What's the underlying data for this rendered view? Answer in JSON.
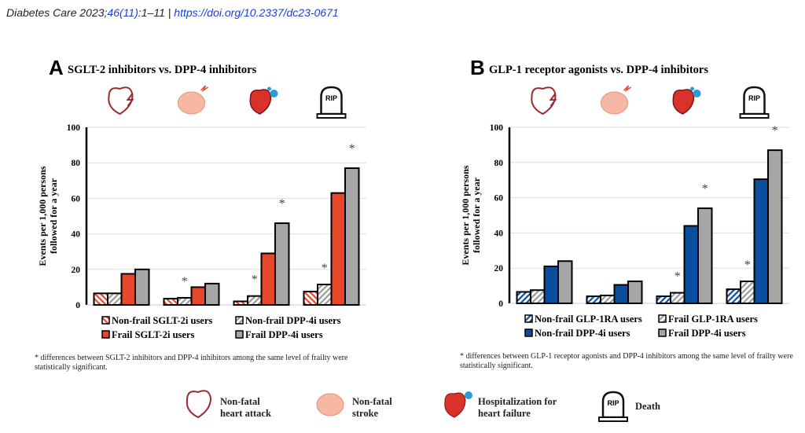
{
  "citation": {
    "journal": "Diabetes Care 2023;",
    "volume": "46(11)",
    "pages": ":1–11 | ",
    "doi": "https://doi.org/10.2337/dc23-0671"
  },
  "colors": {
    "red": "#e8482a",
    "blue": "#0a4f9e",
    "gray": "#a6a6a6"
  },
  "chart_data": [
    {
      "type": "bar",
      "panel": "A",
      "title": "SGLT-2 inhibitors vs. DPP-4 inhibitors",
      "ylabel": [
        "Events per 1,000 persons",
        "followed for a year"
      ],
      "ylim": [
        0,
        100
      ],
      "yticks": [
        "0",
        "20",
        "40",
        "60",
        "80",
        "100"
      ],
      "categories": [
        "Non-fatal heart attack",
        "Non-fatal stroke",
        "Hospitalization for heart failure",
        "Death"
      ],
      "series": [
        {
          "name": "Non-frail SGLT-2i users",
          "style": "hatch-red",
          "values": [
            6.5,
            3.5,
            2,
            7.5
          ]
        },
        {
          "name": "Non-frail DPP-4i users",
          "style": "hatch-gray",
          "values": [
            6.5,
            4,
            5,
            11.5
          ]
        },
        {
          "name": "Frail SGLT-2i users",
          "style": "solid-red",
          "values": [
            17.5,
            10,
            29,
            63
          ]
        },
        {
          "name": "Frail DPP-4i users",
          "style": "solid-gray",
          "values": [
            20,
            12,
            46,
            77
          ]
        }
      ],
      "significance": [
        [
          false,
          false
        ],
        [
          true,
          false
        ],
        [
          true,
          true
        ],
        [
          true,
          true
        ]
      ],
      "legend_order": [
        0,
        1,
        2,
        3
      ],
      "footnote": "* differences between SGLT-2 inhibitors and DPP-4 inhibitors among the same level of frailty were statistically significant."
    },
    {
      "type": "bar",
      "panel": "B",
      "title": "GLP-1 receptor agonists vs. DPP-4 inhibitors",
      "ylabel": [
        "Events per 1,000 persons",
        "followed for a year"
      ],
      "ylim": [
        0,
        100
      ],
      "yticks": [
        "0",
        "20",
        "40",
        "60",
        "80",
        "100"
      ],
      "categories": [
        "Non-fatal heart attack",
        "Non-fatal stroke",
        "Hospitalization for heart failure",
        "Death"
      ],
      "series": [
        {
          "name": "Non-frail GLP-1RA users",
          "style": "hatch-blue",
          "values": [
            6.5,
            4,
            4,
            8
          ]
        },
        {
          "name": "Frail GLP-1RA users",
          "style": "hatch-gray",
          "values": [
            7.5,
            4.5,
            6,
            12.5
          ]
        },
        {
          "name": "Non-frail DPP-4i users",
          "style": "solid-blue",
          "values": [
            21,
            10.5,
            44,
            70.5
          ]
        },
        {
          "name": "Frail DPP-4i users",
          "style": "solid-gray",
          "values": [
            24,
            12.5,
            54,
            87
          ]
        }
      ],
      "significance": [
        [
          false,
          false
        ],
        [
          false,
          false
        ],
        [
          true,
          true
        ],
        [
          true,
          true
        ]
      ],
      "legend_order": [
        0,
        1,
        2,
        3
      ],
      "footnote": "* differences between GLP-1 receptor agonists and DPP-4 inhibitors among the same level of frailty were statistically significant."
    }
  ],
  "bottom_legend": [
    {
      "icon": "heart-attack-icon",
      "label": [
        "Non-fatal",
        "heart attack"
      ]
    },
    {
      "icon": "stroke-brain-icon",
      "label": [
        "Non-fatal",
        "stroke"
      ]
    },
    {
      "icon": "heart-failure-icon",
      "label": [
        "Hospitalization for",
        "heart failure"
      ]
    },
    {
      "icon": "tombstone-icon",
      "label": [
        "Death"
      ]
    }
  ],
  "rip": "RIP"
}
